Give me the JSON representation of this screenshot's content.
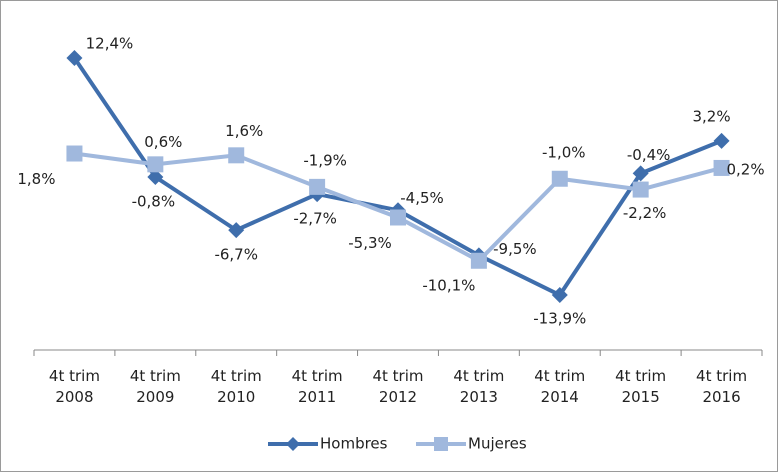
{
  "chart_data": {
    "type": "line",
    "categories": [
      "4t trim 2008",
      "4t trim 2009",
      "4t trim 2010",
      "4t trim 2011",
      "4t trim 2012",
      "4t trim 2013",
      "4t trim 2014",
      "4t trim 2015",
      "4t trim 2016"
    ],
    "series": [
      {
        "name": "Hombres",
        "color": "#3f6eac",
        "marker": "diamond",
        "values": [
          12.4,
          -0.8,
          -6.7,
          -2.7,
          -4.5,
          -9.5,
          -13.9,
          -0.4,
          3.2
        ],
        "value_labels": [
          "12,4%",
          "-0,8%",
          "-6,7%",
          "-2,7%",
          "-4,5%",
          "-9,5%",
          "-13,9%",
          "-0,4%",
          "3,2%"
        ]
      },
      {
        "name": "Mujeres",
        "color": "#a0b8dd",
        "marker": "square",
        "values": [
          1.8,
          0.6,
          1.6,
          -1.9,
          -5.3,
          -10.1,
          -1.0,
          -2.2,
          0.2
        ],
        "value_labels": [
          "1,8%",
          "0,6%",
          "1,6%",
          "-1,9%",
          "-5,3%",
          "-10,1%",
          "-1,0%",
          "-2,2%",
          "0,2%"
        ]
      }
    ],
    "legend": "bottom"
  }
}
